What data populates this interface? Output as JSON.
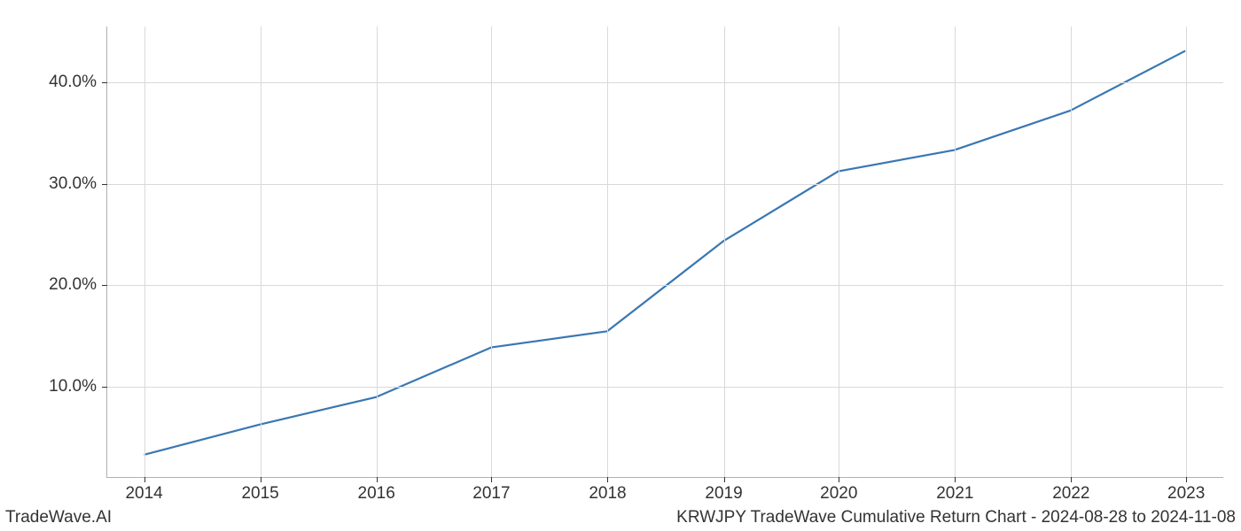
{
  "chart": {
    "type": "line",
    "background_color": "#ffffff",
    "grid_color": "#d9d9d9",
    "axis_color": "#b0b0b0",
    "tick_color": "#333333",
    "text_color": "#333333",
    "line_color": "#3a77b2",
    "line_width": 2.2,
    "tick_fontsize": 19,
    "footer_fontsize": 19,
    "x_categories": [
      "2014",
      "2015",
      "2016",
      "2017",
      "2018",
      "2019",
      "2020",
      "2021",
      "2022",
      "2023"
    ],
    "x_positions": [
      0.033,
      0.137,
      0.241,
      0.344,
      0.448,
      0.552,
      0.655,
      0.759,
      0.863,
      0.966
    ],
    "y_values": [
      3.2,
      6.2,
      8.9,
      13.8,
      15.4,
      24.3,
      31.2,
      33.3,
      37.2,
      43.1
    ],
    "y_ticks": [
      10.0,
      20.0,
      30.0,
      40.0
    ],
    "y_tick_labels": [
      "10.0%",
      "20.0%",
      "30.0%",
      "40.0%"
    ],
    "ylim": [
      1.0,
      45.5
    ],
    "xlim_labels": [
      "2014",
      "2023"
    ]
  },
  "footer": {
    "left": "TradeWave.AI",
    "right": "KRWJPY TradeWave Cumulative Return Chart - 2024-08-28 to 2024-11-08"
  }
}
